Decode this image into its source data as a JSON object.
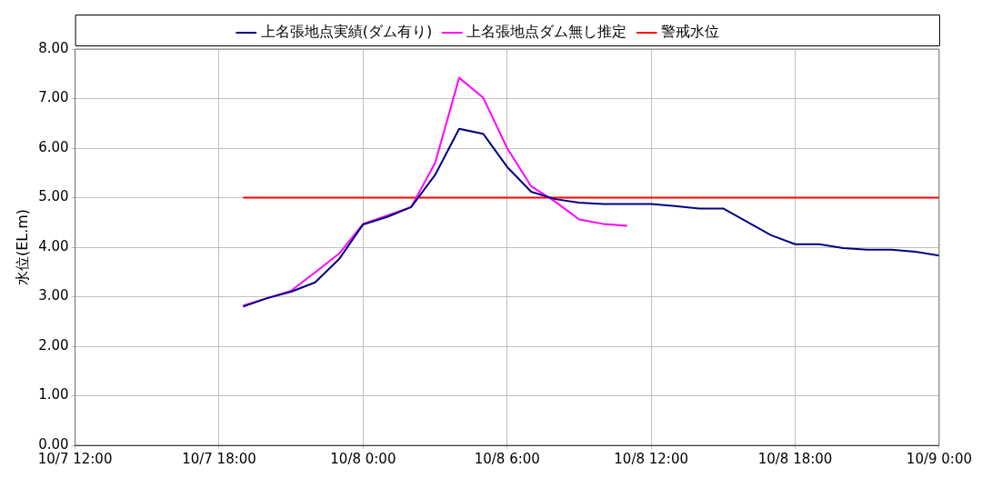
{
  "chart_data": {
    "type": "line",
    "ylabel": "水位(EL.m)",
    "ylim": [
      0,
      8
    ],
    "categories": [
      "10/7 12:00",
      null,
      null,
      null,
      null,
      null,
      "10/7 18:00",
      null,
      null,
      null,
      null,
      null,
      "10/8 0:00",
      null,
      null,
      null,
      null,
      null,
      "10/8 6:00",
      null,
      null,
      null,
      null,
      null,
      "10/8 12:00",
      null,
      null,
      null,
      null,
      null,
      "10/8 18:00",
      null,
      null,
      null,
      null,
      null,
      "10/9 0:00"
    ],
    "yticks": [
      {
        "value": 0,
        "label": "0.00"
      },
      {
        "value": 1,
        "label": "1.00"
      },
      {
        "value": 2,
        "label": "2.00"
      },
      {
        "value": 3,
        "label": "3.00"
      },
      {
        "value": 4,
        "label": "4.00"
      },
      {
        "value": 5,
        "label": "5.00"
      },
      {
        "value": 6,
        "label": "6.00"
      },
      {
        "value": 7,
        "label": "7.00"
      },
      {
        "value": 8,
        "label": "8.00"
      }
    ],
    "grid": true,
    "legend": "top",
    "marker": "none",
    "line_style": "solid",
    "series": [
      {
        "name": "上名張地点実績(ダム有り)",
        "color": "#000080",
        "values": [
          null,
          null,
          null,
          null,
          null,
          null,
          null,
          2.8,
          2.97,
          3.1,
          3.29,
          3.76,
          4.46,
          4.61,
          4.81,
          5.46,
          6.39,
          6.29,
          5.62,
          5.12,
          4.97,
          4.9,
          4.87,
          4.87,
          4.87,
          4.83,
          4.78,
          4.78,
          4.51,
          4.24,
          4.06,
          4.06,
          3.98,
          3.95,
          3.95,
          3.91,
          3.83
        ]
      },
      {
        "name": "上名張地点ダム無し推定",
        "color": "#ff00ff",
        "values": [
          null,
          null,
          null,
          null,
          null,
          null,
          null,
          2.82,
          2.97,
          3.12,
          3.49,
          3.87,
          4.47,
          4.64,
          4.81,
          5.7,
          7.42,
          7.02,
          6.0,
          5.23,
          4.92,
          4.56,
          4.47,
          4.43,
          null,
          null,
          null,
          null,
          null,
          null,
          null,
          null,
          null,
          null,
          null,
          null,
          null
        ]
      },
      {
        "name": "警戒水位",
        "color": "#ff0000",
        "values": [
          null,
          null,
          null,
          null,
          null,
          null,
          null,
          5,
          5,
          5,
          5,
          5,
          5,
          5,
          5,
          5,
          5,
          5,
          5,
          5,
          5,
          5,
          5,
          5,
          5,
          5,
          5,
          5,
          5,
          5,
          5,
          5,
          5,
          5,
          5,
          5,
          5
        ]
      }
    ]
  }
}
